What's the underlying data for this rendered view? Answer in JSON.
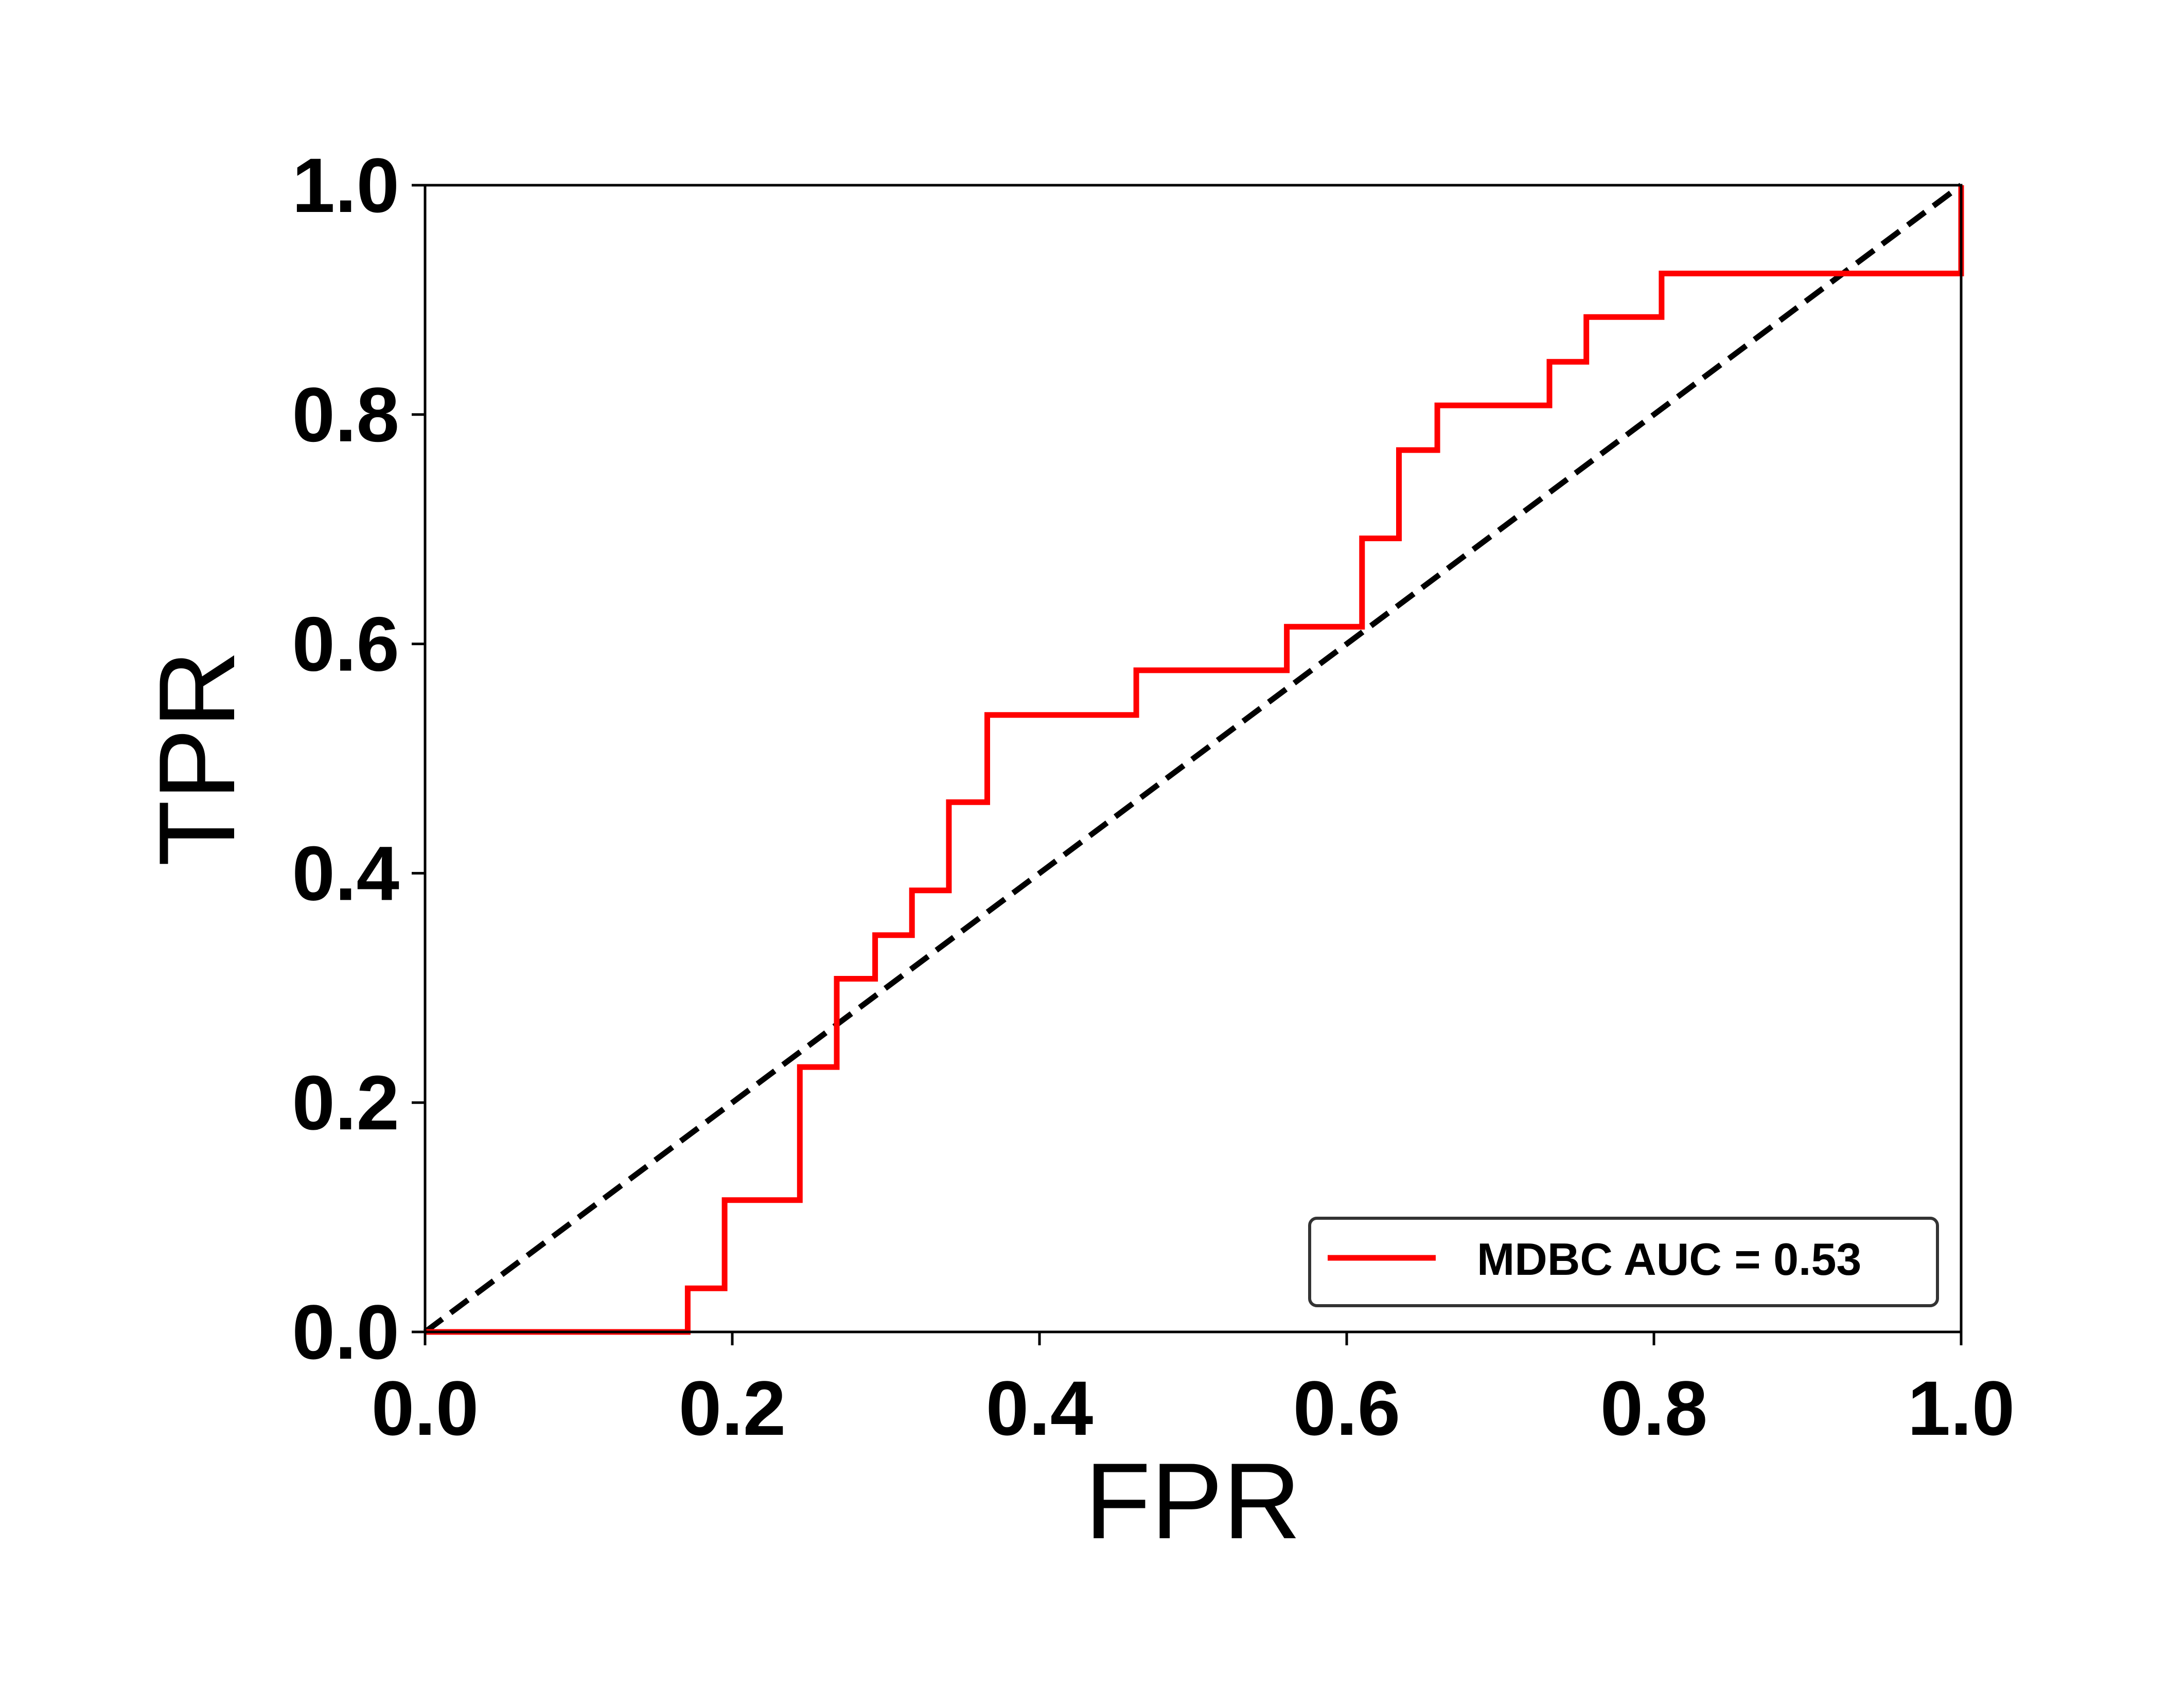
{
  "chart_data": {
    "type": "line",
    "title": "",
    "xlabel": "FPR",
    "ylabel": "TPR",
    "xlim": [
      0.0,
      1.0
    ],
    "ylim": [
      0.0,
      1.0
    ],
    "xticks": [
      "0.0",
      "0.2",
      "0.4",
      "0.6",
      "0.8",
      "1.0"
    ],
    "yticks": [
      "0.0",
      "0.2",
      "0.4",
      "0.6",
      "0.8",
      "1.0"
    ],
    "grid": false,
    "legend_position": "lower-right",
    "series": [
      {
        "name": "MDBC AUC = 0.53",
        "color": "#ff0000",
        "style": "solid",
        "x": [
          0.0,
          0.171,
          0.171,
          0.195,
          0.195,
          0.244,
          0.244,
          0.268,
          0.268,
          0.293,
          0.293,
          0.317,
          0.317,
          0.341,
          0.341,
          0.366,
          0.366,
          0.463,
          0.463,
          0.561,
          0.561,
          0.61,
          0.61,
          0.634,
          0.634,
          0.659,
          0.659,
          0.732,
          0.732,
          0.756,
          0.756,
          0.805,
          0.805,
          1.0,
          1.0
        ],
        "y": [
          0.0,
          0.0,
          0.038,
          0.038,
          0.115,
          0.115,
          0.231,
          0.231,
          0.308,
          0.308,
          0.346,
          0.346,
          0.385,
          0.385,
          0.462,
          0.462,
          0.538,
          0.538,
          0.577,
          0.577,
          0.615,
          0.615,
          0.692,
          0.692,
          0.769,
          0.769,
          0.808,
          0.808,
          0.846,
          0.846,
          0.885,
          0.885,
          0.923,
          0.923,
          1.0
        ]
      }
    ],
    "reference_line": {
      "color": "#000000",
      "style": "dashed",
      "x": [
        0.0,
        1.0
      ],
      "y": [
        0.0,
        1.0
      ]
    },
    "legend": {
      "entries": [
        "MDBC AUC = 0.53"
      ]
    }
  }
}
